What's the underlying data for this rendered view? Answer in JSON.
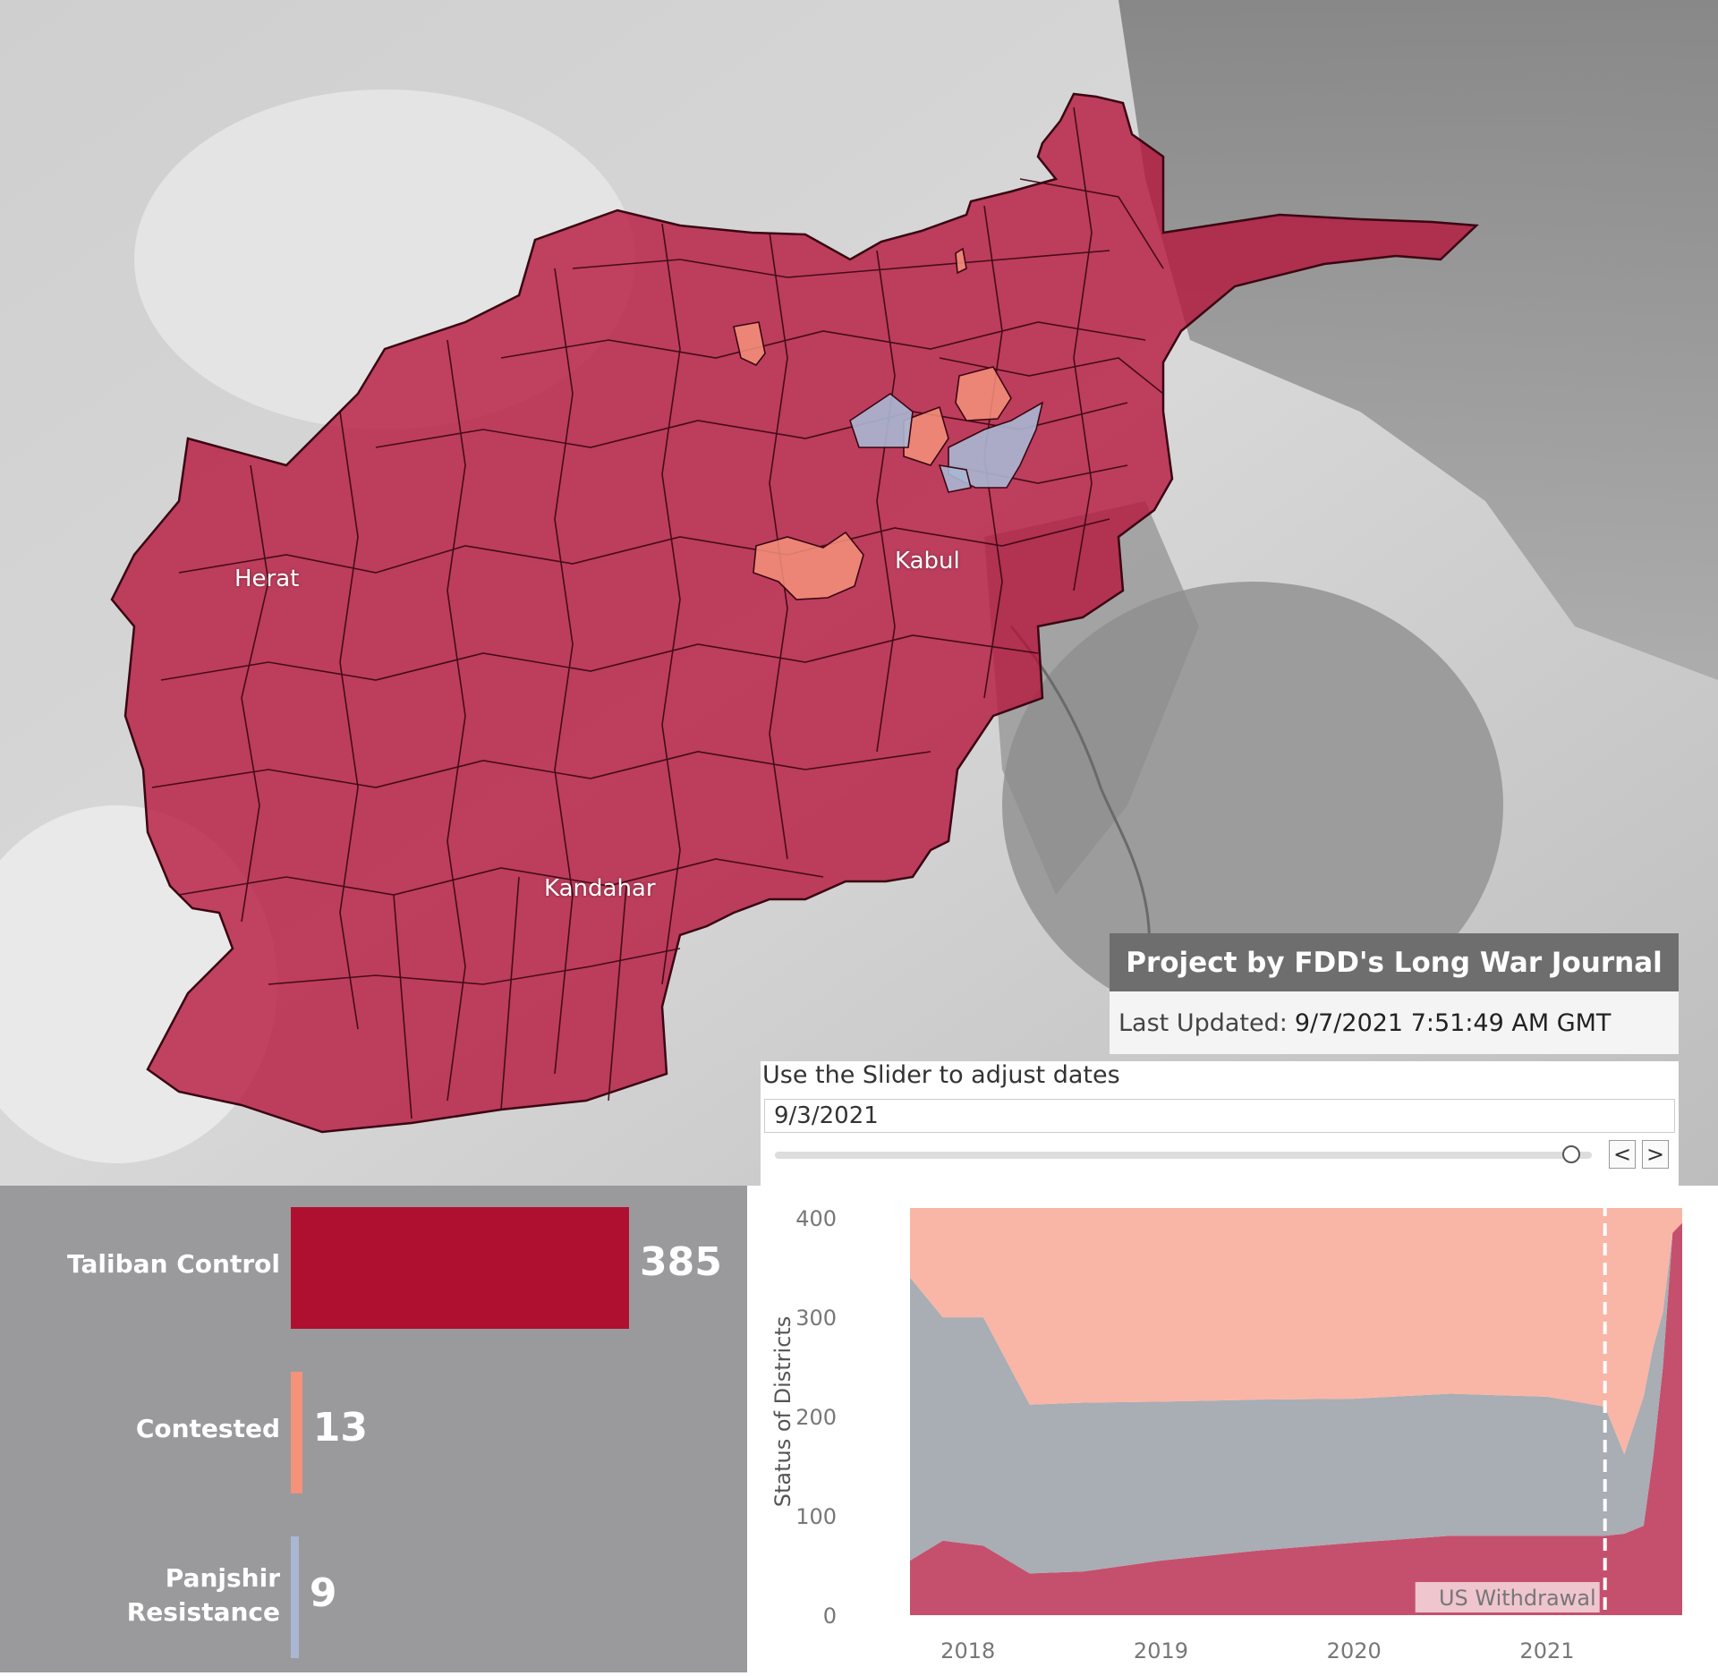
{
  "map": {
    "city_labels": [
      "Herat",
      "Kabul",
      "Kandahar"
    ],
    "legend_colors": {
      "taliban_control": "#b5123a",
      "contested": "#f4927a",
      "panjshir_resistance": "#a9b7d3"
    }
  },
  "banner": {
    "project": "Project by FDD's Long War Journal",
    "last_updated_label": "Last Updated:",
    "last_updated_value": "9/7/2021 7:51:49 AM GMT"
  },
  "slider": {
    "title": "Use the Slider to adjust dates",
    "date_value": "9/3/2021",
    "position_fraction": 0.975,
    "prev_label": "<",
    "next_label": ">"
  },
  "summary_bars": [
    {
      "label": "Taliban Control",
      "value": 385,
      "color": "#b0102f"
    },
    {
      "label": "Contested",
      "value": 13,
      "color": "#f4927a"
    },
    {
      "label": "Panjshir Resistance",
      "value": 9,
      "color": "#a9b7d3"
    }
  ],
  "chart_data": {
    "type": "area",
    "ylabel": "Status of Districts",
    "xlabel": "",
    "ylim": [
      0,
      410
    ],
    "yticks": [
      0,
      100,
      200,
      300,
      400
    ],
    "xticks": [
      "2018",
      "2019",
      "2020",
      "2021"
    ],
    "x": [
      2017.7,
      2017.87,
      2018.08,
      2018.32,
      2018.6,
      2019.0,
      2019.5,
      2020.0,
      2020.5,
      2021.0,
      2021.3,
      2021.4,
      2021.5,
      2021.55,
      2021.6,
      2021.65,
      2021.7
    ],
    "series": [
      {
        "key": "taliban",
        "color": "#c5506e",
        "values": [
          55,
          75,
          70,
          42,
          44,
          55,
          65,
          73,
          80,
          80,
          80,
          82,
          90,
          160,
          250,
          385,
          395
        ]
      },
      {
        "key": "government",
        "color": "#a9adb4",
        "values": [
          285,
          225,
          230,
          170,
          170,
          160,
          152,
          145,
          143,
          140,
          130,
          80,
          130,
          110,
          55,
          0,
          0
        ]
      },
      {
        "key": "contested",
        "color": "#f9b5a6",
        "values": [
          70,
          110,
          110,
          198,
          196,
          195,
          193,
          192,
          187,
          190,
          200,
          248,
          190,
          140,
          105,
          25,
          15
        ]
      }
    ],
    "annotation": {
      "label": "US Withdrawal",
      "x": 2021.3
    }
  }
}
